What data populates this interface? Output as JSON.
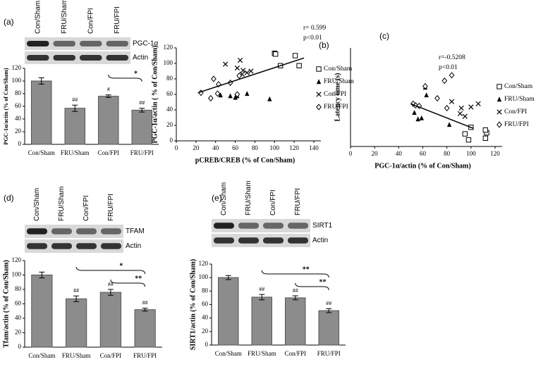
{
  "chart_data": [
    {
      "type": "bar",
      "panel": "(a)",
      "ylabel": "PGC-1α/actin (% of Con/Sham)",
      "categories": [
        "Con/Sham",
        "FRU/Sham",
        "Con/FPI",
        "FRU/FPI"
      ],
      "values": [
        100,
        57,
        76,
        54
      ],
      "errors": [
        5,
        5,
        2,
        3
      ],
      "annotations": [
        null,
        "##",
        "#",
        "##"
      ],
      "brackets": [
        {
          "from": 2,
          "to": 3,
          "label": "*"
        }
      ],
      "ylim": [
        0,
        120
      ],
      "yticks": [
        0,
        20,
        40,
        60,
        80,
        100,
        120
      ],
      "color": "#8c8c8c",
      "blot_bands": [
        "PGC-1α",
        "Actin"
      ]
    },
    {
      "type": "scatter",
      "panel": "(b)",
      "ylabel": "PGC-1α/actin ( % of Con/Sham)",
      "xlabel": "pCREB/CREB (% of Con/Sham)",
      "stats": [
        "r= 0.599",
        "p<0.01"
      ],
      "series": [
        {
          "name": "Con/Sham",
          "marker": "square",
          "x": [
            100,
            101,
            106,
            121,
            125
          ],
          "values": [
            113,
            112,
            97,
            110,
            97
          ]
        },
        {
          "name": "FRU/Sham",
          "marker": "triangle",
          "x": [
            45,
            55,
            60,
            62,
            72,
            95
          ],
          "values": [
            59,
            58,
            56,
            58,
            61,
            54
          ]
        },
        {
          "name": "Con/FPI",
          "marker": "cross",
          "x": [
            50,
            62,
            65,
            68,
            72,
            76,
            67
          ],
          "values": [
            99,
            94,
            104,
            91,
            88,
            90,
            86
          ]
        },
        {
          "name": "FRU/FPI",
          "marker": "diamond",
          "x": [
            25,
            35,
            38,
            42,
            43,
            55,
            62,
            64
          ],
          "values": [
            62,
            55,
            80,
            61,
            73,
            75,
            60,
            84
          ]
        }
      ],
      "trendline": {
        "x": [
          22,
          130
        ],
        "y": [
          62,
          107
        ]
      },
      "xlim": [
        0,
        140
      ],
      "xticks": [
        0,
        20,
        40,
        60,
        80,
        100,
        120,
        140
      ],
      "ylim": [
        0,
        120
      ],
      "yticks": [
        0,
        20,
        40,
        60,
        80,
        100,
        120
      ]
    },
    {
      "type": "scatter",
      "panel": "(c)",
      "ylabel": "Latency time (s)",
      "xlabel": "PGC-1α/actin (% of Con/Sham)",
      "stats": [
        "r=-0.5208",
        "p<0.01"
      ],
      "series": [
        {
          "name": "Con/Sham",
          "marker": "square",
          "x": [
            95,
            98,
            100,
            112,
            113,
            112
          ],
          "values": [
            23,
            12,
            35,
            15,
            25,
            30
          ]
        },
        {
          "name": "FRU/Sham",
          "marker": "triangle",
          "x": [
            53,
            56,
            59,
            62,
            63,
            82
          ],
          "values": [
            62,
            50,
            52,
            108,
            94,
            40
          ]
        },
        {
          "name": "Con/FPI",
          "marker": "cross",
          "x": [
            84,
            91,
            92,
            95,
            100,
            106
          ],
          "values": [
            82,
            60,
            70,
            55,
            72,
            78
          ]
        },
        {
          "name": "FRU/FPI",
          "marker": "diamond",
          "x": [
            52,
            54,
            57,
            62,
            72,
            78,
            84,
            80
          ],
          "values": [
            78,
            75,
            74,
            110,
            88,
            120,
            130,
            70
          ]
        }
      ],
      "trendline": {
        "x": [
          50,
          102
        ],
        "y": [
          78,
          33
        ]
      },
      "xlim": [
        0,
        120
      ],
      "xticks": [
        0,
        20,
        40,
        60,
        80,
        100,
        120
      ],
      "ylim": [
        0,
        180
      ]
    },
    {
      "type": "bar",
      "panel": "(d)",
      "ylabel": "Tfam/actin (% of Con/Sham)",
      "categories": [
        "Con/Sham",
        "FRU/Sham",
        "Con/FPI",
        "FRU/FPI"
      ],
      "values": [
        100,
        67,
        76,
        52
      ],
      "errors": [
        4,
        4,
        4,
        2
      ],
      "annotations": [
        null,
        "##",
        "##",
        "##"
      ],
      "brackets": [
        {
          "from": 1,
          "to": 3,
          "label": "*"
        },
        {
          "from": 2,
          "to": 3,
          "label": "**"
        }
      ],
      "ylim": [
        0,
        120
      ],
      "yticks": [
        0,
        20,
        40,
        60,
        80,
        100,
        120
      ],
      "color": "#8c8c8c",
      "blot_bands": [
        "TFAM",
        "Actin"
      ]
    },
    {
      "type": "bar",
      "panel": "(e)",
      "ylabel": "SIRT1/actin (% of Con/Sham)",
      "categories": [
        "Con/Sham",
        "FRU/Sham",
        "Con/FPI",
        "FRU/FPI"
      ],
      "values": [
        100,
        71,
        70,
        51
      ],
      "errors": [
        3,
        4,
        3,
        3
      ],
      "annotations": [
        null,
        "##",
        "##",
        "##"
      ],
      "brackets": [
        {
          "from": 1,
          "to": 3,
          "label": "**"
        },
        {
          "from": 2,
          "to": 3,
          "label": "**"
        }
      ],
      "ylim": [
        0,
        120
      ],
      "yticks": [
        0,
        20,
        40,
        60,
        80,
        100,
        120
      ],
      "color": "#8c8c8c",
      "blot_bands": [
        "SIRT1",
        "Actin"
      ]
    }
  ]
}
